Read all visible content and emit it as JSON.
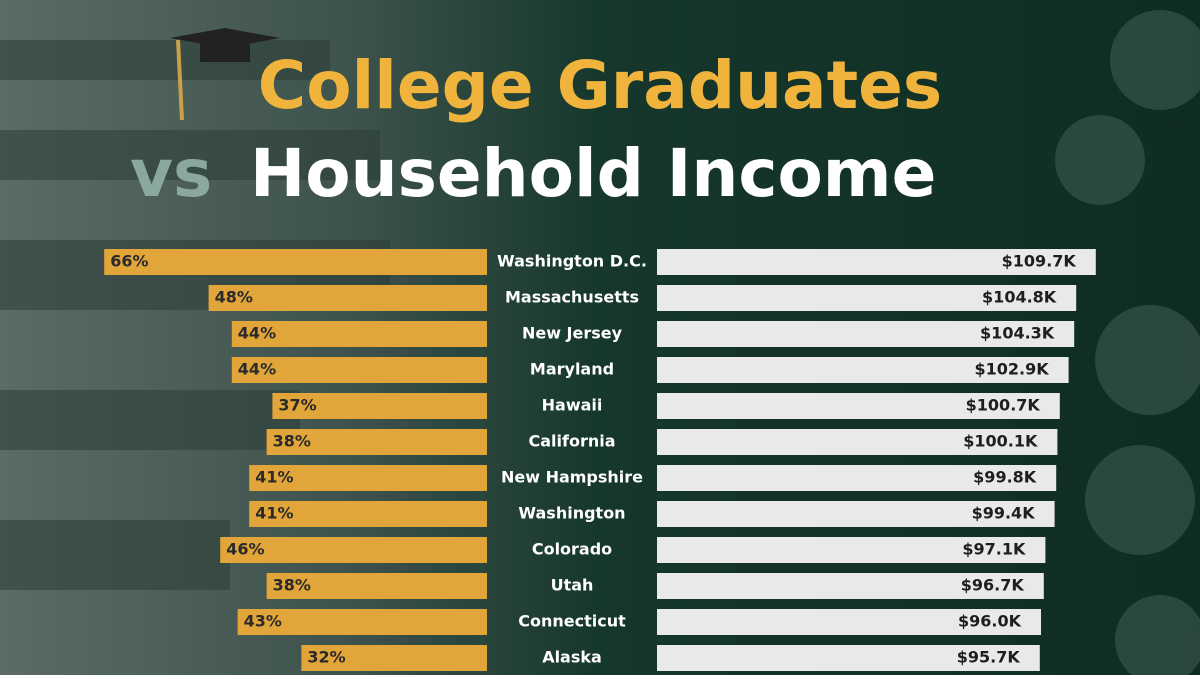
{
  "chart_data": {
    "type": "butterfly",
    "title": "College Graduates",
    "title_prefix": "vs",
    "title_second": "Household Income",
    "categories": [
      "Washington D.C.",
      "Massachusetts",
      "New Jersey",
      "Maryland",
      "Hawaii",
      "California",
      "New Hampshire",
      "Washington",
      "Colorado",
      "Utah",
      "Connecticut",
      "Alaska"
    ],
    "series": [
      {
        "color": "#e2a53a",
        "values": [
          66,
          48,
          44,
          44,
          37,
          38,
          41,
          41,
          46,
          38,
          43,
          32
        ],
        "value_labels": [
          "66%",
          "48%",
          "44%",
          "44%",
          "37%",
          "38%",
          "41%",
          "41%",
          "46%",
          "38%",
          "43%",
          "32%"
        ]
      },
      {
        "color": "#e9e9e9",
        "values": [
          109.7,
          104.8,
          104.3,
          102.9,
          100.7,
          100.1,
          99.8,
          99.4,
          97.1,
          96.7,
          96.0,
          95.7
        ],
        "value_labels": [
          "$109.7K",
          "$104.8K",
          "$104.3K",
          "$102.9K",
          "$100.7K",
          "$100.1K",
          "$99.8K",
          "$99.4K",
          "$97.1K",
          "$96.7K",
          "$96.0K",
          "$95.7K"
        ]
      }
    ]
  }
}
